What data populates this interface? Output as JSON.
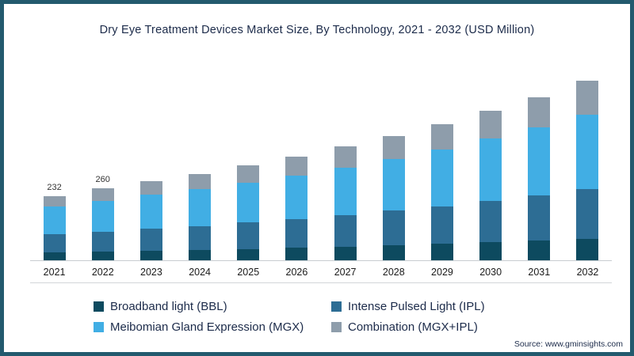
{
  "title": "Dry Eye Treatment Devices Market Size, By Technology, 2021 - 2032 (USD Million)",
  "source": "Source: www.gminsights.com",
  "frame_color": "#235a6e",
  "chart_data": {
    "type": "bar",
    "stacked": true,
    "title": "Dry Eye Treatment Devices Market Size, By Technology, 2021 - 2032 (USD Million)",
    "xlabel": "",
    "ylabel": "USD Million",
    "ylim": [
      0,
      700
    ],
    "grid": false,
    "legend_position": "bottom",
    "categories": [
      "2021",
      "2022",
      "2023",
      "2024",
      "2025",
      "2026",
      "2027",
      "2028",
      "2029",
      "2030",
      "2031",
      "2032"
    ],
    "series": [
      {
        "name": "Broadband light (BBL)",
        "color": "#0d4a5f",
        "values": [
          28,
          31,
          34,
          37,
          41,
          45,
          49,
          54,
          59,
          65,
          71,
          78
        ]
      },
      {
        "name": "Intense Pulsed Light (IPL)",
        "color": "#2d6d94",
        "values": [
          65,
          73,
          80,
          87,
          95,
          104,
          114,
          125,
          137,
          150,
          164,
          180
        ]
      },
      {
        "name": "Meibomian Gland Expression (MGX)",
        "color": "#41aee4",
        "values": [
          100,
          112,
          122,
          133,
          145,
          158,
          172,
          188,
          205,
          224,
          244,
          267
        ]
      },
      {
        "name": "Combination (MGX+IPL)",
        "color": "#8e9dab",
        "values": [
          39,
          44,
          49,
          55,
          61,
          68,
          76,
          83,
          92,
          101,
          111,
          123
        ]
      }
    ],
    "totals": [
      232,
      260,
      285,
      312,
      342,
      375,
      411,
      450,
      493,
      540,
      590,
      648
    ],
    "data_labels": [
      232,
      260,
      null,
      null,
      null,
      null,
      null,
      null,
      null,
      null,
      null,
      null
    ]
  }
}
